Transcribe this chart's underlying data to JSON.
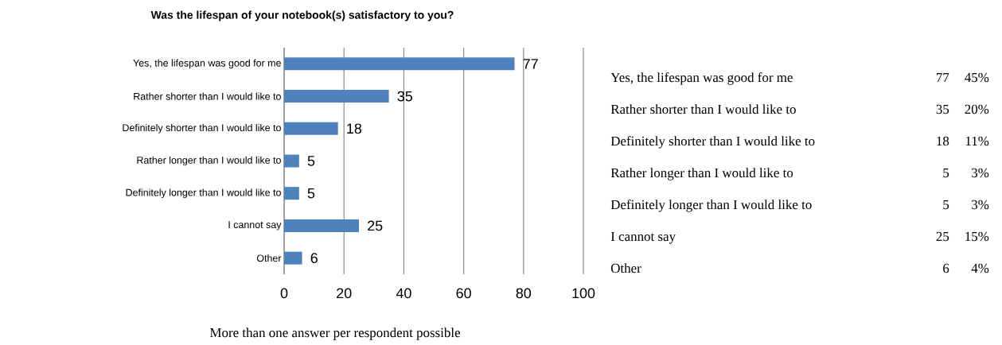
{
  "chart_data": [
    {
      "type": "bar",
      "orientation": "horizontal",
      "title": "Was the lifespan of your notebook(s) satisfactory to you?",
      "categories": [
        "Yes, the lifespan was good for me",
        "Rather shorter than I would like to",
        "Definitely shorter than I would like to",
        "Rather longer than I would like to",
        "Definitely longer than I would like to",
        "I cannot say",
        "Other"
      ],
      "values": [
        77,
        35,
        18,
        5,
        5,
        25,
        6
      ],
      "color": "#4f81bd",
      "value_labels": [
        "77",
        "35",
        "18",
        "5",
        "5",
        "25",
        "6"
      ],
      "xlim": [
        0,
        100
      ],
      "xticks": [
        0,
        20,
        40,
        60,
        80,
        100
      ],
      "grid": "x",
      "annotations": [
        "More than one answer per respondent possible"
      ]
    },
    {
      "type": "other",
      "annotations": [
        "Yes, the lifespan was good for me",
        "77",
        "45%",
        "Rather shorter than I would like to",
        "35",
        "20%",
        "Definitely shorter than I would like to",
        "18",
        "11%",
        "Rather longer than I would like to",
        "5",
        "3%",
        "Definitely longer than I would like to",
        "5",
        "3%",
        "I cannot say",
        "25",
        "15%",
        "Other",
        "6",
        "4%"
      ]
    }
  ]
}
